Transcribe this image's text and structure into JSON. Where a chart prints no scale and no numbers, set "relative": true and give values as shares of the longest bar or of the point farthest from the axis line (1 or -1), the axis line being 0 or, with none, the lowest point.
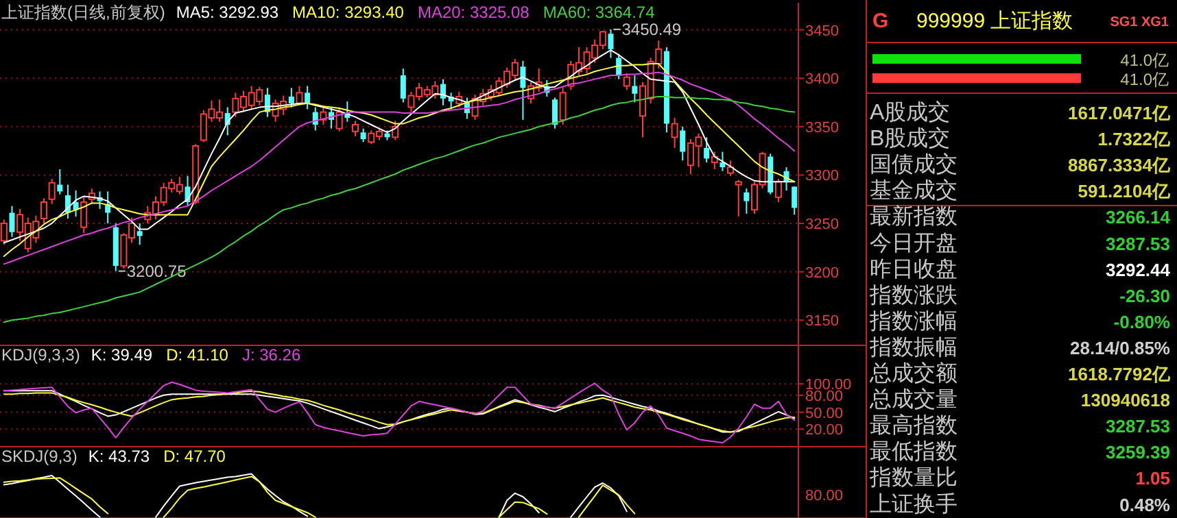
{
  "chart_data": [
    {
      "type": "candlestick",
      "title": "上证指数(日线,前复权)",
      "legend": "top left",
      "grid": "y",
      "tick_labels": "y",
      "ylim": [
        3124,
        3478
      ],
      "yticks": [
        3150,
        3200,
        3250,
        3300,
        3350,
        3400,
        3450
      ],
      "categories": [
        null,
        null,
        null,
        null,
        null,
        null,
        null,
        null,
        null,
        null,
        null,
        null,
        null,
        null,
        null,
        null,
        null,
        null,
        null,
        null,
        null,
        null,
        null,
        null,
        null,
        null,
        null,
        null,
        null,
        null,
        null,
        null,
        null,
        null,
        null,
        null,
        null,
        null,
        null,
        null,
        null,
        null,
        null,
        null,
        null,
        null,
        null,
        null,
        null,
        null,
        null,
        null,
        null,
        null,
        null,
        null,
        null,
        null,
        null,
        null,
        null,
        null,
        null,
        null,
        null,
        null,
        null,
        null,
        null,
        null,
        null,
        null,
        null,
        null,
        null,
        null,
        null,
        null,
        null,
        null,
        null,
        null,
        null,
        null,
        null,
        null,
        null,
        null,
        null,
        null,
        null,
        null,
        null,
        null,
        null,
        null,
        null,
        null,
        null,
        null
      ],
      "ohlc": [
        [
          3232,
          3254,
          3228,
          3250
        ],
        [
          3261,
          3268,
          3236,
          3241
        ],
        [
          3241,
          3265,
          3232,
          3259
        ],
        [
          3224,
          3256,
          3220,
          3250
        ],
        [
          3235,
          3258,
          3230,
          3252
        ],
        [
          3255,
          3276,
          3250,
          3272
        ],
        [
          3275,
          3296,
          3270,
          3292
        ],
        [
          3290,
          3306,
          3280,
          3283
        ],
        [
          3279,
          3290,
          3255,
          3261
        ],
        [
          3272,
          3284,
          3257,
          3264
        ],
        [
          3246,
          3278,
          3240,
          3272
        ],
        [
          3275,
          3286,
          3270,
          3281
        ],
        [
          3277,
          3283,
          3265,
          3273
        ],
        [
          3270,
          3283,
          3250,
          3261
        ],
        [
          3246,
          3250,
          3200.75,
          3206
        ],
        [
          3206,
          3240,
          3203,
          3238
        ],
        [
          3235,
          3256,
          3230,
          3250
        ],
        [
          3242,
          3250,
          3228,
          3237
        ],
        [
          3254,
          3268,
          3250,
          3261
        ],
        [
          3259,
          3278,
          3254,
          3272
        ],
        [
          3272,
          3292,
          3268,
          3287
        ],
        [
          3286,
          3296,
          3282,
          3292
        ],
        [
          3283,
          3298,
          3280,
          3290
        ],
        [
          3288,
          3299,
          3268,
          3272
        ],
        [
          3272,
          3332,
          3270,
          3330
        ],
        [
          3336,
          3367,
          3334,
          3363
        ],
        [
          3359,
          3377,
          3355,
          3368
        ],
        [
          3359,
          3378,
          3355,
          3365
        ],
        [
          3364,
          3370,
          3341,
          3352
        ],
        [
          3365,
          3385,
          3360,
          3379
        ],
        [
          3370,
          3387,
          3365,
          3381
        ],
        [
          3372,
          3392,
          3368,
          3385
        ],
        [
          3376,
          3391,
          3372,
          3388
        ],
        [
          3383,
          3390,
          3360,
          3365
        ],
        [
          3361,
          3378,
          3355,
          3374
        ],
        [
          3368,
          3382,
          3362,
          3376
        ],
        [
          3381,
          3390,
          3370,
          3374
        ],
        [
          3374,
          3392,
          3372,
          3385
        ],
        [
          3385,
          3392,
          3368,
          3374
        ],
        [
          3365,
          3370,
          3346,
          3352
        ],
        [
          3357,
          3372,
          3352,
          3365
        ],
        [
          3365,
          3370,
          3348,
          3357
        ],
        [
          3348,
          3370,
          3345,
          3365
        ],
        [
          3364,
          3376,
          3355,
          3359
        ],
        [
          3345,
          3356,
          3340,
          3352
        ],
        [
          3344,
          3348,
          3334,
          3337
        ],
        [
          3334,
          3346,
          3332,
          3343
        ],
        [
          3340,
          3348,
          3336,
          3345
        ],
        [
          3343,
          3346,
          3336,
          3339
        ],
        [
          3339,
          3356,
          3336,
          3350
        ],
        [
          3403,
          3410,
          3375,
          3379
        ],
        [
          3370,
          3386,
          3365,
          3382
        ],
        [
          3381,
          3395,
          3377,
          3390
        ],
        [
          3383,
          3392,
          3380,
          3388
        ],
        [
          3383,
          3397,
          3379,
          3392
        ],
        [
          3394,
          3399,
          3372,
          3379
        ],
        [
          3381,
          3385,
          3368,
          3376
        ],
        [
          3374,
          3386,
          3370,
          3381
        ],
        [
          3375,
          3380,
          3358,
          3364
        ],
        [
          3361,
          3383,
          3357,
          3379
        ],
        [
          3376,
          3389,
          3372,
          3384
        ],
        [
          3381,
          3393,
          3377,
          3388
        ],
        [
          3385,
          3401,
          3381,
          3397
        ],
        [
          3394,
          3411,
          3390,
          3407
        ],
        [
          3403,
          3420,
          3399,
          3416
        ],
        [
          3412,
          3418,
          3357,
          3390
        ],
        [
          3379,
          3396,
          3374,
          3392
        ],
        [
          3390,
          3410,
          3386,
          3396
        ],
        [
          3392,
          3398,
          3381,
          3385
        ],
        [
          3378,
          3380,
          3348,
          3352
        ],
        [
          3357,
          3390,
          3352,
          3385
        ],
        [
          3392,
          3418,
          3388,
          3414
        ],
        [
          3407,
          3432,
          3403,
          3416
        ],
        [
          3410,
          3432,
          3405,
          3427
        ],
        [
          3421,
          3440,
          3416,
          3434
        ],
        [
          3434,
          3449,
          3430,
          3448
        ],
        [
          3446,
          3450.49,
          3421,
          3430
        ],
        [
          3421,
          3425,
          3399,
          3403
        ],
        [
          3392,
          3405,
          3388,
          3401
        ],
        [
          3392,
          3403,
          3375,
          3384
        ],
        [
          3361,
          3396,
          3339,
          3392
        ],
        [
          3379,
          3421,
          3374,
          3417
        ],
        [
          3415,
          3439,
          3410,
          3430
        ],
        [
          3428,
          3432,
          3344,
          3353
        ],
        [
          3339,
          3359,
          3328,
          3353
        ],
        [
          3346,
          3350,
          3315,
          3324
        ],
        [
          3310,
          3337,
          3301,
          3333
        ],
        [
          3330,
          3343,
          3308,
          3339
        ],
        [
          3328,
          3339,
          3313,
          3317
        ],
        [
          3313,
          3324,
          3306,
          3319
        ],
        [
          3313,
          3324,
          3304,
          3308
        ],
        [
          3302,
          3315,
          3299,
          3308
        ],
        [
          3290,
          3295,
          3257,
          3293
        ],
        [
          3282,
          3286,
          3260,
          3273
        ],
        [
          3264,
          3293,
          3260,
          3290
        ],
        [
          3290,
          3324,
          3286,
          3322
        ],
        [
          3319,
          3322,
          3280,
          3282
        ],
        [
          3277,
          3296,
          3272,
          3293
        ],
        [
          3304,
          3308,
          3284,
          3293
        ],
        [
          3288,
          3288,
          3259,
          3266
        ]
      ],
      "series": [
        {
          "name": "MA5: 3292.93",
          "type": "line",
          "color": "#ffffff",
          "values": [
            3230,
            3233,
            3236,
            3239,
            3242,
            3245,
            3250,
            3258,
            3266,
            3274,
            3278,
            3277,
            3276,
            3273,
            3266,
            3259,
            3252,
            3244,
            3244,
            3250,
            3256,
            3262,
            3269,
            3275,
            3288,
            3305,
            3322,
            3338,
            3355,
            3364,
            3366,
            3368,
            3370,
            3371,
            3371,
            3372,
            3373,
            3374,
            3374,
            3372,
            3370,
            3368,
            3366,
            3363,
            3360,
            3356,
            3352,
            3348,
            3344,
            3348,
            3356,
            3363,
            3370,
            3377,
            3384,
            3383,
            3380,
            3378,
            3375,
            3378,
            3382,
            3386,
            3390,
            3394,
            3398,
            3401,
            3397,
            3393,
            3390,
            3391,
            3397,
            3402,
            3408,
            3413,
            3419,
            3424,
            3429,
            3424,
            3418,
            3412,
            3405,
            3399,
            3398,
            3397,
            3396,
            3386,
            3369,
            3352,
            3334,
            3319,
            3314,
            3309,
            3303,
            3298,
            3294,
            3293,
            3293,
            3293,
            3293,
            3293
          ]
        },
        {
          "name": "MA10: 3293.40",
          "type": "line",
          "color": "#ffff40",
          "values": [
            3216,
            3223,
            3229,
            3236,
            3242,
            3249,
            3254,
            3257,
            3261,
            3264,
            3267,
            3271,
            3271,
            3269,
            3266,
            3264,
            3262,
            3260,
            3259,
            3259,
            3259,
            3259,
            3259,
            3259,
            3275,
            3292,
            3309,
            3319,
            3328,
            3337,
            3346,
            3356,
            3365,
            3367,
            3368,
            3370,
            3371,
            3373,
            3374,
            3373,
            3371,
            3370,
            3369,
            3367,
            3365,
            3364,
            3362,
            3359,
            3356,
            3353,
            3353,
            3356,
            3359,
            3361,
            3364,
            3367,
            3369,
            3372,
            3375,
            3377,
            3378,
            3380,
            3382,
            3384,
            3386,
            3387,
            3389,
            3391,
            3394,
            3396,
            3398,
            3400,
            3402,
            3404,
            3407,
            3409,
            3411,
            3413,
            3413,
            3414,
            3414,
            3415,
            3415,
            3406,
            3397,
            3388,
            3379,
            3371,
            3362,
            3354,
            3346,
            3338,
            3330,
            3322,
            3314,
            3308,
            3304,
            3301,
            3297,
            3293
          ]
        },
        {
          "name": "MA20: 3325.08",
          "type": "line",
          "color": "#e040e0",
          "values": [
            3208,
            3211,
            3214,
            3217,
            3220,
            3223,
            3226,
            3229,
            3232,
            3235,
            3238,
            3240,
            3243,
            3245,
            3248,
            3251,
            3253,
            3256,
            3258,
            3260,
            3262,
            3264,
            3266,
            3268,
            3273,
            3278,
            3284,
            3289,
            3294,
            3299,
            3304,
            3309,
            3315,
            3322,
            3329,
            3336,
            3343,
            3350,
            3354,
            3356,
            3358,
            3360,
            3362,
            3364,
            3365,
            3365,
            3365,
            3365,
            3365,
            3365,
            3364,
            3364,
            3364,
            3364,
            3365,
            3366,
            3367,
            3368,
            3369,
            3370,
            3371,
            3372,
            3373,
            3375,
            3378,
            3380,
            3382,
            3384,
            3387,
            3389,
            3391,
            3394,
            3395,
            3397,
            3399,
            3401,
            3403,
            3403,
            3404,
            3404,
            3405,
            3405,
            3406,
            3404,
            3401,
            3398,
            3394,
            3391,
            3388,
            3385,
            3381,
            3378,
            3372,
            3365,
            3358,
            3352,
            3345,
            3338,
            3332,
            3325
          ]
        },
        {
          "name": "MA60: 3364.74",
          "type": "line",
          "color": "#40d040",
          "values": [
            3148,
            3150,
            3151,
            3152,
            3154,
            3155,
            3157,
            3158,
            3160,
            3162,
            3164,
            3166,
            3168,
            3170,
            3173,
            3175,
            3177,
            3179,
            3183,
            3187,
            3191,
            3195,
            3199,
            3203,
            3207,
            3211,
            3215,
            3220,
            3226,
            3231,
            3237,
            3242,
            3248,
            3253,
            3259,
            3264,
            3266,
            3269,
            3271,
            3274,
            3276,
            3279,
            3281,
            3284,
            3286,
            3289,
            3292,
            3295,
            3298,
            3301,
            3305,
            3308,
            3311,
            3314,
            3317,
            3319,
            3322,
            3325,
            3328,
            3331,
            3333,
            3336,
            3339,
            3341,
            3343,
            3345,
            3347,
            3350,
            3352,
            3354,
            3356,
            3359,
            3361,
            3364,
            3367,
            3369,
            3372,
            3374,
            3375,
            3377,
            3378,
            3380,
            3381,
            3381,
            3380,
            3380,
            3380,
            3379,
            3379,
            3378,
            3378,
            3377,
            3375,
            3374,
            3372,
            3371,
            3369,
            3368,
            3366,
            3365
          ]
        }
      ],
      "annotations": [
        "3450.49",
        "3200.75"
      ]
    },
    {
      "type": "line",
      "title": "KDJ(9,3,3)",
      "legend": "top left",
      "grid": "y",
      "tick_labels": "y",
      "ylim": [
        -11,
        168
      ],
      "yticks": [
        {
          "value": 100,
          "label": "100.00"
        },
        {
          "value": 80,
          "label": "80.00"
        },
        {
          "value": 50,
          "label": "50.00"
        },
        {
          "value": 20,
          "label": "20.00"
        }
      ],
      "categories": [
        null,
        null,
        null,
        null,
        null,
        null,
        null,
        null,
        null,
        null,
        null,
        null,
        null,
        null,
        null,
        null,
        null,
        null,
        null,
        null,
        null,
        null,
        null,
        null,
        null,
        null,
        null,
        null,
        null,
        null,
        null,
        null,
        null,
        null,
        null,
        null,
        null,
        null,
        null,
        null,
        null,
        null,
        null,
        null,
        null,
        null,
        null,
        null,
        null,
        null,
        null,
        null,
        null,
        null,
        null,
        null,
        null,
        null,
        null,
        null,
        null,
        null,
        null,
        null,
        null,
        null,
        null,
        null,
        null,
        null,
        null,
        null,
        null,
        null,
        null,
        null,
        null,
        null,
        null,
        null,
        null,
        null,
        null,
        null,
        null,
        null,
        null,
        null,
        null,
        null,
        null,
        null,
        null,
        null,
        null,
        null,
        null,
        null,
        null,
        null
      ],
      "series": [
        {
          "name": "K: 39.49",
          "color": "#ffffff",
          "values": [
            88,
            88,
            88,
            88,
            88,
            88,
            88,
            82,
            75,
            69,
            62,
            56,
            49,
            43,
            45,
            51,
            57,
            63,
            69,
            75,
            80,
            82,
            82,
            82,
            82,
            82,
            82,
            82,
            82,
            82,
            82,
            82,
            80,
            78,
            76,
            74,
            72,
            70,
            66,
            61,
            56,
            51,
            46,
            41,
            36,
            31,
            26,
            21,
            24,
            28,
            33,
            37,
            42,
            46,
            50,
            55,
            57,
            53,
            50,
            46,
            47,
            53,
            60,
            66,
            72,
            68,
            63,
            59,
            55,
            51,
            57,
            62,
            68,
            73,
            79,
            80,
            76,
            72,
            68,
            64,
            60,
            57,
            52,
            48,
            43,
            39,
            34,
            29,
            25,
            20,
            15,
            15,
            16,
            23,
            30,
            37,
            44,
            51,
            45,
            39
          ]
        },
        {
          "name": "D: 41.10",
          "color": "#ffff40",
          "values": [
            82,
            82,
            83,
            83,
            84,
            84,
            84,
            80,
            76,
            71,
            67,
            63,
            59,
            54,
            50,
            46,
            43,
            49,
            55,
            61,
            67,
            72,
            74,
            75,
            77,
            78,
            80,
            81,
            83,
            84,
            86,
            87,
            86,
            83,
            81,
            78,
            76,
            73,
            71,
            67,
            62,
            58,
            54,
            49,
            45,
            41,
            37,
            32,
            28,
            29,
            33,
            37,
            40,
            44,
            47,
            51,
            54,
            52,
            50,
            48,
            48,
            54,
            59,
            64,
            69,
            67,
            64,
            62,
            59,
            57,
            60,
            63,
            66,
            69,
            72,
            75,
            71,
            67,
            63,
            59,
            56,
            54,
            50,
            46,
            42,
            37,
            33,
            29,
            25,
            21,
            17,
            15,
            18,
            22,
            25,
            29,
            33,
            37,
            40,
            41
          ]
        },
        {
          "name": "J: 36.26",
          "color": "#e040e0",
          "values": [
            88,
            89,
            90,
            91,
            92,
            93,
            94,
            77,
            60,
            49,
            54,
            57,
            40,
            23,
            5,
            23,
            40,
            55,
            69,
            83,
            97,
            103,
            99,
            94,
            89,
            87,
            86,
            85,
            84,
            86,
            88,
            90,
            72,
            55,
            50,
            57,
            63,
            68,
            49,
            28,
            23,
            20,
            17,
            14,
            11,
            8,
            10,
            11,
            13,
            29,
            45,
            61,
            69,
            66,
            63,
            60,
            57,
            54,
            50,
            47,
            52,
            66,
            80,
            94,
            94,
            79,
            64,
            61,
            59,
            57,
            66,
            75,
            84,
            93,
            101,
            89,
            80,
            46,
            19,
            31,
            50,
            61,
            45,
            22,
            17,
            13,
            8,
            2,
            0,
            -2,
            -4,
            6,
            22,
            42,
            64,
            57,
            57,
            69,
            46,
            36
          ]
        }
      ]
    },
    {
      "type": "line",
      "title": "SKDJ(9,3)",
      "legend": "top left",
      "relative": true,
      "annotations": [
        "80.00"
      ],
      "categories": [
        null,
        null,
        null,
        null,
        null,
        null,
        null,
        null,
        null,
        null,
        null,
        null,
        null,
        null,
        null,
        null,
        null,
        null,
        null,
        null,
        null,
        null,
        null,
        null,
        null,
        null,
        null,
        null,
        null,
        null,
        null,
        null,
        null,
        null,
        null,
        null,
        null,
        null,
        null,
        null,
        null,
        null,
        null,
        null,
        null,
        null,
        null,
        null,
        null,
        null,
        null,
        null,
        null,
        null,
        null,
        null,
        null,
        null,
        null,
        null,
        null,
        null,
        null,
        null,
        null,
        null,
        null,
        null,
        null,
        null,
        null,
        null,
        null,
        null,
        null,
        null,
        null,
        null,
        null,
        null,
        null,
        null,
        null,
        null,
        null,
        null,
        null,
        null,
        null,
        null,
        null,
        null,
        null,
        null,
        null,
        null,
        null,
        null,
        null,
        null
      ],
      "series": [
        {
          "name": "K: 43.73",
          "color": "#ffffff",
          "values": [
            0.75,
            0.78,
            0.82,
            0.85,
            0.89,
            0.92,
            0.96,
            0.81,
            0.65,
            0.5,
            0.34,
            0.18,
            0.02,
            null,
            null,
            null,
            null,
            null,
            null,
            0.02,
            0.27,
            0.5,
            0.72,
            0.76,
            0.8,
            0.83,
            0.86,
            0.89,
            0.92,
            0.94,
            0.97,
            1,
            0.82,
            0.65,
            0.51,
            0.37,
            0.27,
            0.15,
            0.04,
            null,
            null,
            null,
            null,
            null,
            null,
            null,
            null,
            null,
            null,
            null,
            null,
            null,
            null,
            null,
            null,
            null,
            null,
            null,
            null,
            null,
            null,
            null,
            0.02,
            0.4,
            0.56,
            0.48,
            0.32,
            0.12,
            null,
            null,
            null,
            0.02,
            0.25,
            0.48,
            0.7,
            0.79,
            0.68,
            0.5,
            0.15,
            null,
            null,
            null,
            null,
            null,
            null,
            null,
            null,
            null,
            null,
            null,
            null,
            null,
            null,
            null,
            null,
            null,
            null,
            null,
            null,
            null
          ]
        },
        {
          "name": "D: 47.70",
          "color": "#ffff40",
          "values": [
            0.81,
            0.83,
            0.84,
            0.86,
            0.88,
            0.89,
            0.9,
            0.91,
            0.79,
            0.67,
            0.55,
            0.43,
            0.25,
            0.1,
            null,
            null,
            null,
            null,
            null,
            null,
            0.02,
            0.22,
            0.45,
            0.63,
            0.67,
            0.7,
            0.74,
            0.78,
            0.82,
            0.86,
            0.9,
            0.94,
            0.82,
            0.58,
            0.4,
            0.33,
            0.26,
            0.19,
            0.12,
            0.02,
            null,
            null,
            null,
            null,
            null,
            null,
            null,
            null,
            null,
            null,
            null,
            null,
            null,
            null,
            null,
            null,
            null,
            null,
            null,
            null,
            null,
            null,
            0.02,
            0.19,
            0.36,
            0.35,
            0.28,
            0.21,
            0.09,
            null,
            null,
            null,
            0.02,
            0.26,
            0.5,
            0.74,
            0.63,
            0.52,
            0.3,
            0.1,
            null,
            null,
            null,
            null,
            null,
            null,
            null,
            null,
            null,
            null,
            null,
            null,
            null,
            null,
            null,
            null,
            null,
            null,
            null,
            null
          ]
        }
      ]
    },
    {
      "type": "bar",
      "orientation": "horizontal",
      "title": "999999 上证指数",
      "categories": [
        null,
        null
      ],
      "values": [
        41.0,
        41.0
      ],
      "colors": [
        "#10e010",
        "#ff3a3a"
      ],
      "value_labels": [
        "41.0亿",
        "41.0亿"
      ],
      "annotations": [
        "G",
        "SG1 XG1"
      ]
    },
    {
      "type": "other",
      "categories": [
        "A股成交",
        "B股成交",
        "国债成交",
        "基金成交",
        "最新指数",
        "今日开盘",
        "昨日收盘",
        "指数涨跌",
        "指数涨幅",
        "指数振幅",
        "总成交额",
        "总成交量",
        "最高指数",
        "最低指数",
        "指数量比",
        "上证换手"
      ],
      "value_labels": [
        "1617.0471亿",
        "1.7322亿",
        "8867.3334亿",
        "591.2104亿",
        "3266.14",
        "3287.53",
        "3292.44",
        "-26.30",
        "-0.80%",
        "28.14/0.85%",
        "1618.7792亿",
        "130940618",
        "3287.53",
        "3259.39",
        "1.05",
        "0.48%"
      ],
      "colors": [
        "#d8d840",
        "#d8d840",
        "#d8d840",
        "#d8d840",
        "#30d030",
        "#30d030",
        "#ffffff",
        "#30d030",
        "#30d030",
        "#d0d0d0",
        "#d8d840",
        "#d8d840",
        "#30d030",
        "#30d030",
        "#ff4040",
        "#d0d0d0"
      ]
    }
  ]
}
